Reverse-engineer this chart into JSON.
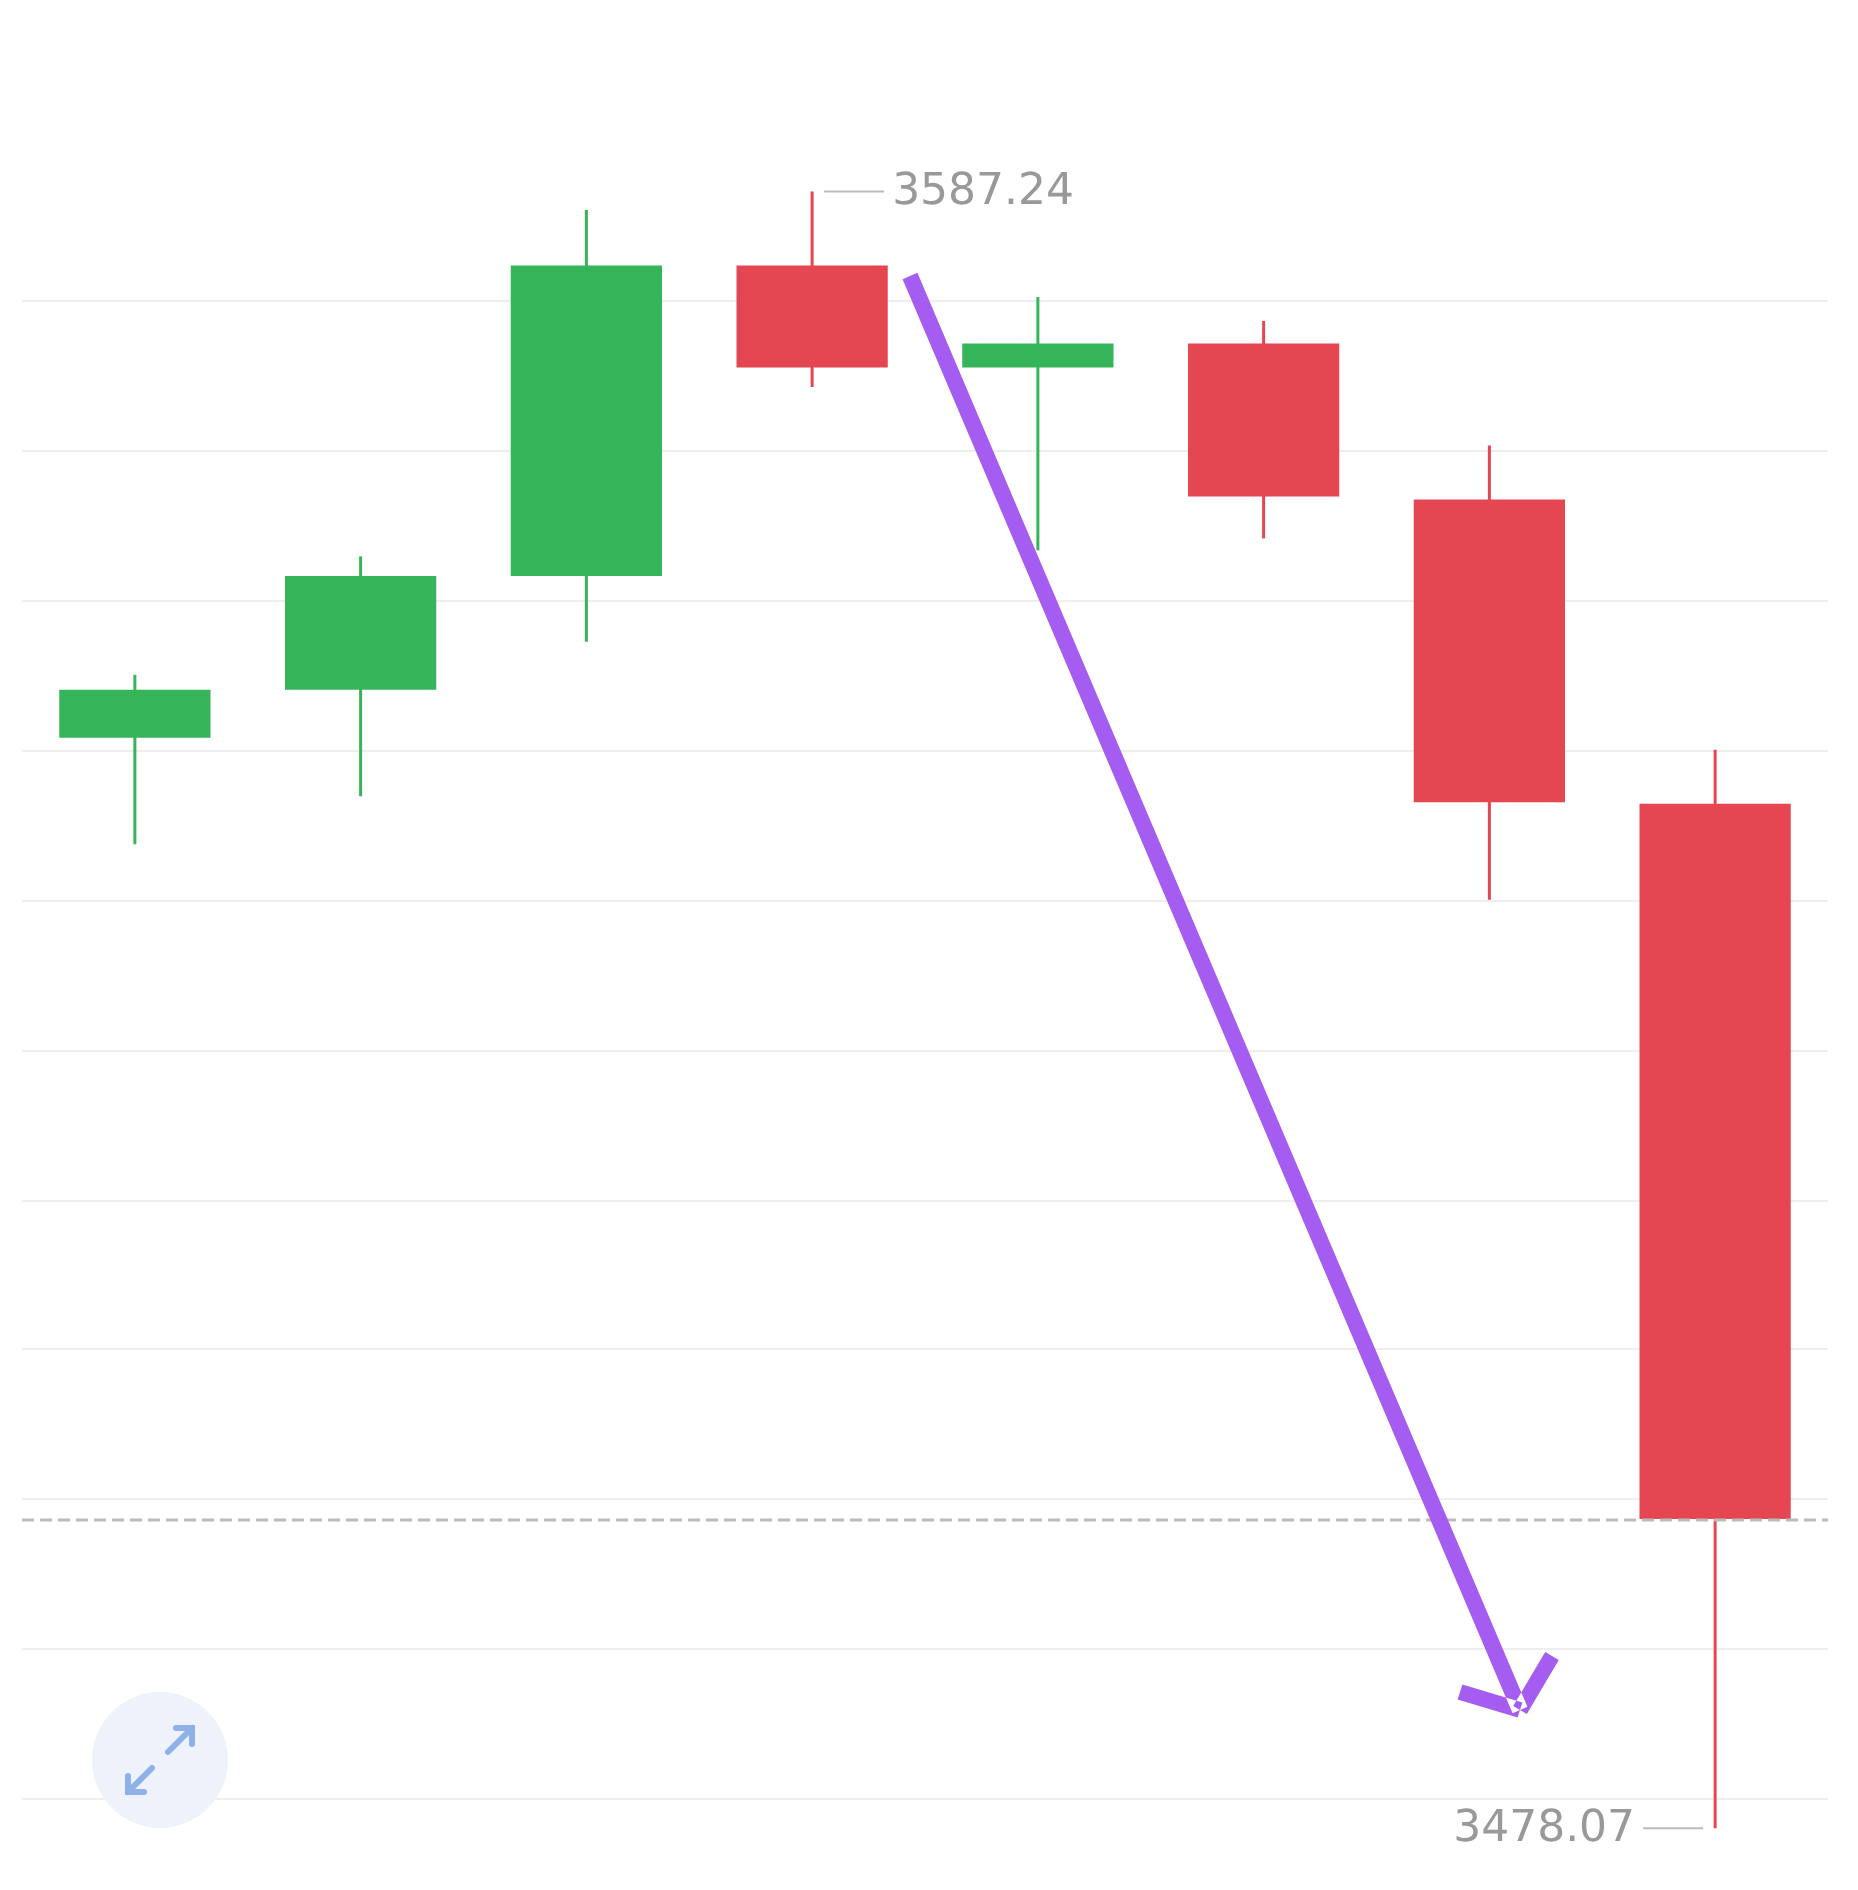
{
  "chart_data": {
    "type": "candlestick",
    "categories": [
      null,
      null,
      null,
      null,
      null,
      null,
      null,
      null
    ],
    "ohlc": [
      [
        3550.8,
        3555.0,
        3543.7,
        3554.0
      ],
      [
        3554.0,
        3562.9,
        3546.9,
        3561.6
      ],
      [
        3561.6,
        3586.0,
        3557.2,
        3582.3
      ],
      [
        3582.3,
        3587.24,
        3574.2,
        3575.5
      ],
      [
        3575.5,
        3580.2,
        3563.3,
        3577.1
      ],
      [
        3577.1,
        3578.6,
        3564.1,
        3566.9
      ],
      [
        3566.7,
        3570.3,
        3540.0,
        3546.5
      ],
      [
        3546.4,
        3550.0,
        3478.07,
        3498.7
      ]
    ],
    "colors": [
      "#36b459",
      "#36b459",
      "#36b459",
      "#e44652",
      "#36b459",
      "#e44652",
      "#e44652",
      "#e44652"
    ],
    "yticks": [
      {
        "value": 3480,
        "label": null
      },
      {
        "value": 3490,
        "label": null
      },
      {
        "value": 3500,
        "label": null
      },
      {
        "value": 3510,
        "label": null
      },
      {
        "value": 3520,
        "label": null
      },
      {
        "value": 3530,
        "label": null
      },
      {
        "value": 3540,
        "label": null
      },
      {
        "value": 3550,
        "label": null
      },
      {
        "value": 3560,
        "label": null
      },
      {
        "value": 3570,
        "label": null
      },
      {
        "value": 3580,
        "label": null
      }
    ],
    "grid": "y",
    "ref_lines": [
      {
        "axis": "y",
        "value": 3498.7,
        "color": "#bbbbbb",
        "line_style": "dashed"
      }
    ],
    "annotations": [
      "3587.24",
      "3478.07"
    ]
  }
}
